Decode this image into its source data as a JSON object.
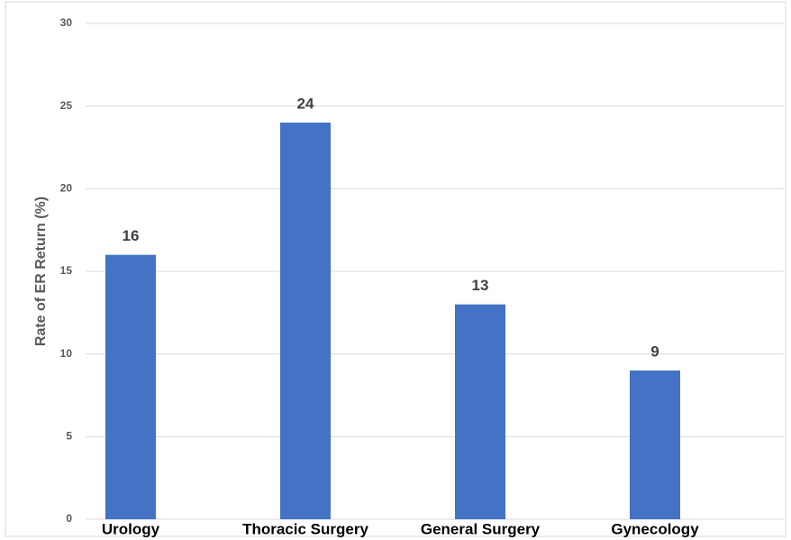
{
  "chart_data": {
    "type": "bar",
    "y_label": "Rate of ER Return (%)",
    "categories": [
      "Urology",
      "Thoracic Surgery",
      "General Surgery",
      "Gynecology"
    ],
    "values": [
      16,
      24,
      13,
      9
    ],
    "color": "#4472c4",
    "ylim": [
      0,
      30
    ],
    "yticks": [
      0,
      5,
      10,
      15,
      20,
      25,
      30
    ],
    "grid": true
  }
}
